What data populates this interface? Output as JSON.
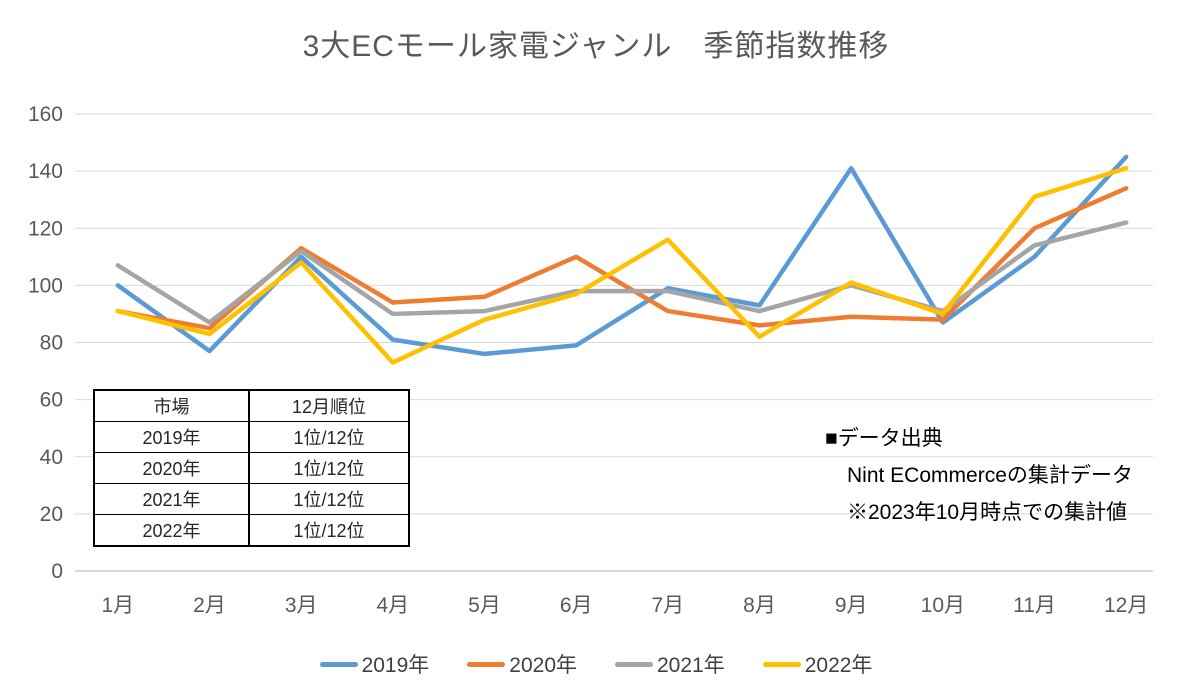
{
  "title": "3大ECモール家電ジャンル　季節指数推移",
  "chart_data": {
    "type": "line",
    "title": "3大ECモール家電ジャンル　季節指数推移",
    "categories": [
      "1月",
      "2月",
      "3月",
      "4月",
      "5月",
      "6月",
      "7月",
      "8月",
      "9月",
      "10月",
      "11月",
      "12月"
    ],
    "series": [
      {
        "name": "2019年",
        "color": "#5B9BD5",
        "values": [
          100,
          77,
          110,
          81,
          76,
          79,
          99,
          93,
          141,
          87,
          110,
          145
        ]
      },
      {
        "name": "2020年",
        "color": "#ED7D31",
        "values": [
          91,
          85,
          113,
          94,
          96,
          110,
          91,
          86,
          89,
          88,
          120,
          134
        ]
      },
      {
        "name": "2021年",
        "color": "#A5A5A5",
        "values": [
          107,
          87,
          112,
          90,
          91,
          98,
          98,
          91,
          100,
          91,
          114,
          122
        ]
      },
      {
        "name": "2022年",
        "color": "#FFC000",
        "values": [
          91,
          83,
          108,
          73,
          88,
          97,
          116,
          82,
          101,
          90,
          131,
          141
        ]
      }
    ],
    "ylim": [
      0,
      160
    ],
    "yticks": [
      0,
      20,
      40,
      60,
      80,
      100,
      120,
      140,
      160
    ],
    "grid": true,
    "legend_position": "bottom",
    "xlabel": "",
    "ylabel": ""
  },
  "table": {
    "header": [
      "市場",
      "12月順位"
    ],
    "rows": [
      [
        "2019年",
        "1位/12位"
      ],
      [
        "2020年",
        "1位/12位"
      ],
      [
        "2021年",
        "1位/12位"
      ],
      [
        "2022年",
        "1位/12位"
      ]
    ]
  },
  "source_note": {
    "bullet": "■",
    "heading": "データ出典",
    "line1": "Nint ECommerceの集計データ",
    "line2": "※2023年10月時点での集計値"
  },
  "colors": {
    "series_2019": "#5B9BD5",
    "series_2020": "#ED7D31",
    "series_2021": "#A5A5A5",
    "series_2022": "#FFC000",
    "gridline": "#D9D9D9",
    "axis_line": "#D9D9D9",
    "axis_text": "#595959",
    "title_text": "#595959"
  }
}
